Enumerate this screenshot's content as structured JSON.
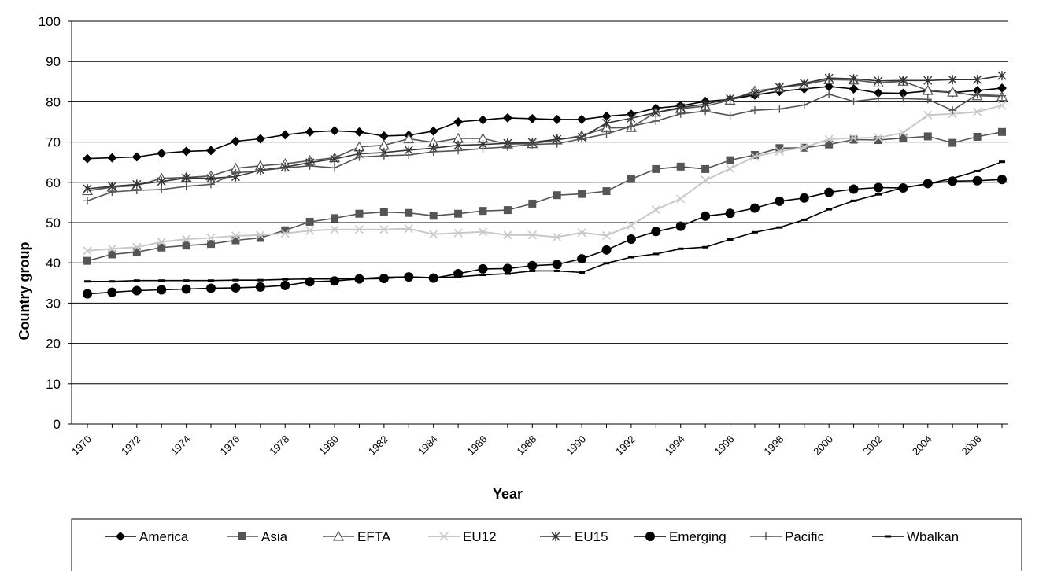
{
  "chart_data": {
    "type": "line",
    "xlabel": "Year",
    "ylabel": "Country group",
    "ylim": [
      0,
      100
    ],
    "yticks": [
      0,
      10,
      20,
      30,
      40,
      50,
      60,
      70,
      80,
      90,
      100
    ],
    "x": [
      1970,
      1971,
      1972,
      1973,
      1974,
      1975,
      1976,
      1977,
      1978,
      1979,
      1980,
      1981,
      1982,
      1983,
      1984,
      1985,
      1986,
      1987,
      1988,
      1989,
      1990,
      1991,
      1992,
      1993,
      1994,
      1995,
      1996,
      1997,
      1998,
      1999,
      2000,
      2001,
      2002,
      2003,
      2004,
      2005,
      2006,
      2007
    ],
    "xtick_labels": [
      "1970",
      "1972",
      "1974",
      "1976",
      "1978",
      "1980",
      "1982",
      "1984",
      "1986",
      "1988",
      "1990",
      "1992",
      "1994",
      "1996",
      "1998",
      "2000",
      "2002",
      "2004",
      "2006"
    ],
    "grid": "horizontal",
    "legend_position": "bottom",
    "series": [
      {
        "name": "America",
        "marker": "diamond",
        "color": "#000000",
        "values": [
          65.9,
          66.1,
          66.3,
          67.2,
          67.7,
          67.9,
          70.2,
          70.8,
          71.8,
          72.5,
          72.8,
          72.5,
          71.5,
          71.7,
          72.7,
          75.0,
          75.5,
          76.0,
          75.8,
          75.6,
          75.6,
          76.4,
          76.9,
          78.4,
          79.0,
          80.1,
          80.6,
          81.7,
          82.6,
          83.2,
          83.8,
          83.2,
          82.2,
          82.1,
          82.7,
          82.3,
          82.8,
          83.4
        ]
      },
      {
        "name": "Asia",
        "marker": "square",
        "color": "#555555",
        "values": [
          40.5,
          42.1,
          42.7,
          43.8,
          44.3,
          44.7,
          45.6,
          46.2,
          48.1,
          50.2,
          51.1,
          52.2,
          52.6,
          52.4,
          51.7,
          52.2,
          52.9,
          53.1,
          54.7,
          56.8,
          57.1,
          57.8,
          60.8,
          63.3,
          63.9,
          63.3,
          65.5,
          66.8,
          68.5,
          68.6,
          69.4,
          70.6,
          70.5,
          71.0,
          71.4,
          69.8,
          71.3,
          72.5
        ]
      },
      {
        "name": "EFTA",
        "marker": "triangle",
        "color": "#555555",
        "values": [
          57.9,
          58.8,
          59.2,
          61.0,
          61.2,
          61.6,
          63.5,
          64.1,
          64.6,
          65.4,
          66.1,
          68.8,
          69.2,
          70.8,
          69.9,
          70.9,
          70.9,
          69.5,
          69.6,
          70.5,
          71.6,
          73.5,
          73.6,
          77.4,
          78.3,
          78.9,
          80.4,
          82.7,
          83.5,
          84.3,
          85.5,
          85.4,
          84.7,
          85.1,
          82.8,
          82.4,
          81.5,
          81.3
        ]
      },
      {
        "name": "EU12",
        "marker": "x",
        "color": "#c8c8c8",
        "values": [
          43.0,
          43.5,
          43.9,
          45.2,
          45.9,
          46.2,
          46.7,
          46.9,
          47.3,
          48.0,
          48.3,
          48.3,
          48.3,
          48.5,
          47.1,
          47.4,
          47.7,
          46.9,
          46.9,
          46.4,
          47.5,
          46.8,
          49.3,
          53.2,
          55.9,
          60.5,
          63.4,
          66.4,
          67.7,
          68.7,
          70.7,
          71.0,
          71.1,
          72.3,
          76.7,
          77.0,
          77.5,
          79.1
        ]
      },
      {
        "name": "EU15",
        "marker": "star",
        "color": "#333333",
        "values": [
          58.4,
          59.0,
          59.5,
          60.2,
          61.1,
          61.0,
          61.4,
          63.0,
          63.8,
          64.9,
          65.8,
          67.1,
          67.4,
          68.0,
          68.5,
          69.2,
          69.4,
          69.7,
          69.9,
          70.7,
          71.2,
          74.7,
          75.9,
          77.3,
          78.6,
          79.4,
          80.8,
          82.1,
          83.6,
          84.6,
          85.9,
          85.7,
          85.2,
          85.3,
          85.3,
          85.5,
          85.5,
          86.5
        ]
      },
      {
        "name": "Emerging",
        "marker": "circle",
        "color": "#000000",
        "values": [
          32.3,
          32.7,
          33.1,
          33.3,
          33.5,
          33.7,
          33.8,
          34.0,
          34.4,
          35.3,
          35.5,
          36.0,
          36.1,
          36.5,
          36.2,
          37.3,
          38.5,
          38.6,
          39.3,
          39.6,
          41.0,
          43.2,
          45.9,
          47.8,
          49.1,
          51.6,
          52.3,
          53.6,
          55.3,
          56.1,
          57.5,
          58.3,
          58.7,
          58.6,
          59.7,
          60.3,
          60.4,
          60.7
        ]
      },
      {
        "name": "Pacific",
        "marker": "plus",
        "color": "#555555",
        "values": [
          55.4,
          57.6,
          58.0,
          58.2,
          59.0,
          59.5,
          62.3,
          62.9,
          63.6,
          64.1,
          63.6,
          66.3,
          66.6,
          66.8,
          67.6,
          67.9,
          68.4,
          68.8,
          69.4,
          69.6,
          70.8,
          72.0,
          73.9,
          75.2,
          77.0,
          77.7,
          76.6,
          77.9,
          78.2,
          79.2,
          81.9,
          80.1,
          80.8,
          80.8,
          80.6,
          77.9,
          81.8,
          81.5
        ]
      },
      {
        "name": "Wbalkan",
        "marker": "dash",
        "color": "#000000",
        "values": [
          35.4,
          35.4,
          35.6,
          35.6,
          35.6,
          35.6,
          35.7,
          35.7,
          35.9,
          36.0,
          36.0,
          36.1,
          36.4,
          36.5,
          36.3,
          36.5,
          37.0,
          37.3,
          38.0,
          38.0,
          37.6,
          39.9,
          41.4,
          42.2,
          43.5,
          43.9,
          45.8,
          47.6,
          48.8,
          50.7,
          53.3,
          55.4,
          57.0,
          58.7,
          59.6,
          61.0,
          62.8,
          65.1
        ]
      }
    ]
  }
}
